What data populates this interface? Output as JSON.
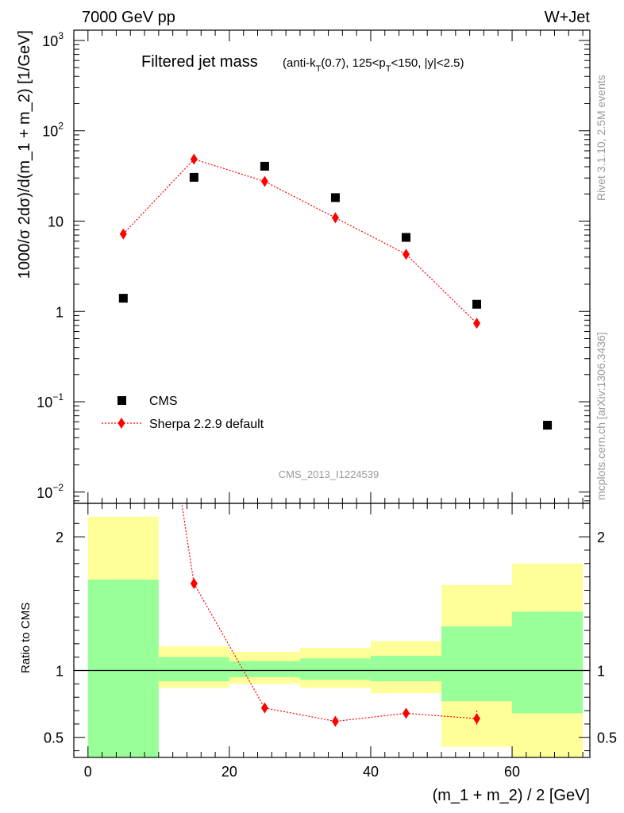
{
  "header": {
    "left": "7000 GeV pp",
    "right": "W+Jet"
  },
  "side": {
    "rivet": "Rivet 3.1.10,  2.5M events",
    "mcplots": "mcplots.cern.ch [arXiv:1306.3436]"
  },
  "chart_data": {
    "type": "scatter",
    "title": "Filtered jet mass",
    "subtitle_parts": {
      "a": "(anti-k",
      "a_sub": "T",
      "b": "(0.7), 125<p",
      "b_sub": "T",
      "c": "<150, |y|<2.5)"
    },
    "analysis_id": "CMS_2013_I1224539",
    "xlabel": "(m_1 + m_2) / 2 [GeV]",
    "ylabel": "1000/σ 2dσ)/d(m_1 + m_2) [1/GeV]",
    "xlim": [
      -2,
      71
    ],
    "ylim": [
      0.0075,
      1300
    ],
    "yscale": "log",
    "x_ticks": [
      "0",
      "20",
      "40",
      "60"
    ],
    "y_ticks": [
      {
        "mant": "10",
        "exp": "−2",
        "v": 0.01
      },
      {
        "mant": "10",
        "exp": "−1",
        "v": 0.1
      },
      {
        "mant": "1",
        "exp": "",
        "v": 1
      },
      {
        "mant": "10",
        "exp": "",
        "v": 10
      },
      {
        "mant": "10",
        "exp": "2",
        "v": 100
      },
      {
        "mant": "10",
        "exp": "3",
        "v": 1000
      }
    ],
    "legend_position": "bottom-left",
    "series": [
      {
        "name": "CMS",
        "marker": "square",
        "color": "#000000",
        "x": [
          5,
          15,
          25,
          35,
          45,
          55,
          65
        ],
        "y": [
          1.4,
          30.5,
          40.5,
          18.2,
          6.6,
          1.2,
          0.055
        ]
      },
      {
        "name": "Sherpa 2.2.9 default",
        "marker": "diamond",
        "line": "dotted",
        "color": "#ff0000",
        "x": [
          5,
          15,
          25,
          35,
          45,
          55
        ],
        "y": [
          7.2,
          48.5,
          27.5,
          10.9,
          4.3,
          0.74
        ]
      }
    ],
    "ratio": {
      "ylabel": "Ratio to CMS",
      "ylim": [
        0.35,
        2.25
      ],
      "y_ticks": [
        "0.5",
        "1",
        "2"
      ],
      "y_tick_values": [
        0.5,
        1,
        2
      ],
      "bins": [
        {
          "x0": 0,
          "x1": 10,
          "stat_lo": 0.35,
          "stat_hi": 1.68,
          "tot_lo": 0.35,
          "tot_hi": 2.15
        },
        {
          "x0": 10,
          "x1": 20,
          "stat_lo": 0.92,
          "stat_hi": 1.1,
          "tot_lo": 0.87,
          "tot_hi": 1.18
        },
        {
          "x0": 20,
          "x1": 30,
          "stat_lo": 0.95,
          "stat_hi": 1.07,
          "tot_lo": 0.9,
          "tot_hi": 1.14
        },
        {
          "x0": 30,
          "x1": 40,
          "stat_lo": 0.93,
          "stat_hi": 1.09,
          "tot_lo": 0.87,
          "tot_hi": 1.17
        },
        {
          "x0": 40,
          "x1": 50,
          "stat_lo": 0.92,
          "stat_hi": 1.11,
          "tot_lo": 0.83,
          "tot_hi": 1.22
        },
        {
          "x0": 50,
          "x1": 60,
          "stat_lo": 0.77,
          "stat_hi": 1.33,
          "tot_lo": 0.43,
          "tot_hi": 1.64
        },
        {
          "x0": 60,
          "x1": 70,
          "stat_lo": 0.68,
          "stat_hi": 1.44,
          "tot_lo": 0.35,
          "tot_hi": 1.8
        }
      ],
      "mc_x": [
        5,
        15,
        25,
        35,
        45,
        55
      ],
      "mc_y": [
        5.1,
        1.65,
        0.72,
        0.62,
        0.68,
        0.64
      ],
      "mc_err": [
        0,
        0,
        0,
        0.02,
        0.03,
        0.06
      ]
    },
    "colors": {
      "stat_band": "#99ff99",
      "total_band": "#ffff99",
      "mc": "#ff0000",
      "data": "#000000"
    }
  }
}
